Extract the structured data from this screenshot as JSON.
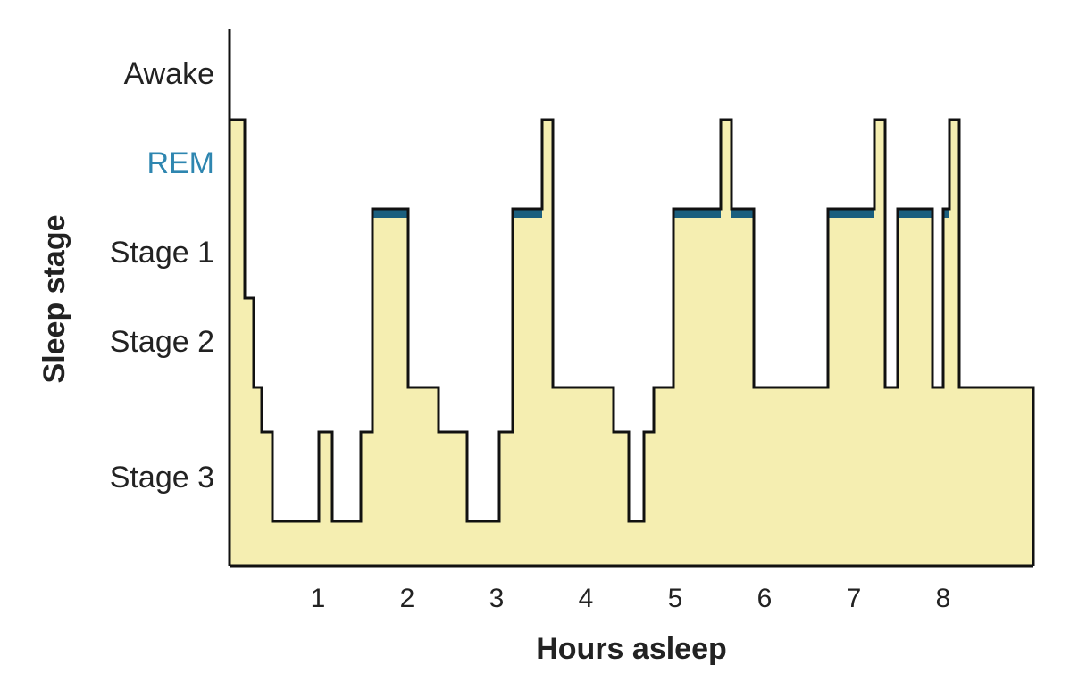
{
  "chart_data": {
    "type": "area",
    "xlabel": "Hours asleep",
    "ylabel": "Sleep stage",
    "x_ticks": [
      1,
      2,
      3,
      4,
      5,
      6,
      7,
      8
    ],
    "xlim": [
      0,
      9
    ],
    "y_categories": [
      "Stage 3",
      "Stage 2",
      "Stage 1",
      "REM",
      "Awake"
    ],
    "y_levels": [
      {
        "label": "Awake",
        "value": 5,
        "color": "#222222"
      },
      {
        "label": "REM",
        "value": 4,
        "color": "#2e86b0"
      },
      {
        "label": "Stage 1",
        "value": 3,
        "color": "#222222"
      },
      {
        "label": "Stage 2",
        "value": 2,
        "color": "#222222"
      },
      {
        "label": "Stage 3",
        "value": 1,
        "color": "#222222"
      }
    ],
    "step_x": [
      0,
      0.17,
      0.27,
      0.36,
      0.48,
      1.0,
      1.15,
      1.47,
      1.6,
      2.0,
      2.34,
      2.66,
      3.02,
      3.17,
      3.5,
      3.62,
      4.3,
      4.47,
      4.64,
      4.75,
      4.97,
      5.5,
      5.62,
      5.87,
      6.7,
      7.22,
      7.34,
      7.48,
      7.87,
      7.99,
      8.06,
      8.17,
      9.0
    ],
    "step_y": [
      5,
      3,
      2,
      1.5,
      0.5,
      1.5,
      0.5,
      1.5,
      4,
      2,
      1.5,
      0.5,
      1.5,
      4,
      5,
      2,
      1.5,
      0.5,
      1.5,
      2,
      4,
      5,
      4,
      2,
      4,
      5,
      2,
      4,
      2,
      4,
      5,
      2
    ],
    "rem_periods": [
      [
        1.6,
        2.0
      ],
      [
        3.17,
        3.5
      ],
      [
        4.97,
        5.5
      ],
      [
        5.62,
        5.87
      ],
      [
        6.7,
        7.22
      ],
      [
        7.48,
        7.87
      ],
      [
        7.99,
        8.06
      ]
    ],
    "colors": {
      "fill": "#f5eeb1",
      "line": "#111111",
      "rem": "#1b5f7e",
      "rem_label": "#2e86b0"
    }
  }
}
